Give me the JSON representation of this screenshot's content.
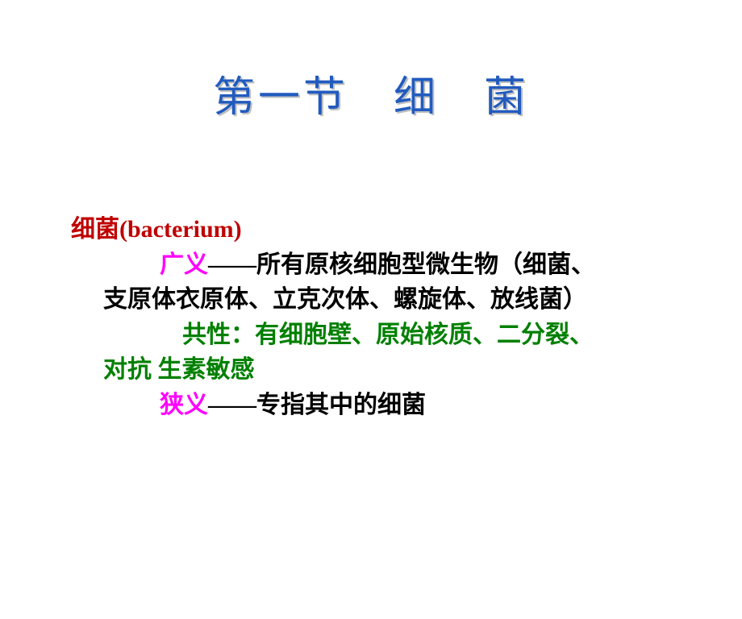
{
  "colors": {
    "title": "#215bbf",
    "heading": "#c00000",
    "magenta": "#ff00ff",
    "green": "#008000",
    "black": "#000000"
  },
  "title": "第一节　细　菌",
  "heading": "细菌(bacterium)",
  "broad_label": "广义",
  "broad_dash": "——",
  "broad_text1": "所有原核细胞型微生物（细菌、",
  "broad_text2": "支原体衣原体、立克次体、螺旋体、放线菌）",
  "common_label": "共性：",
  "common_text1": "有细胞壁、原始核质、二分裂、",
  "common_text2": "对抗 生素敏感",
  "narrow_label": "狭义",
  "narrow_dash": "——",
  "narrow_text": "专指其中的细菌"
}
